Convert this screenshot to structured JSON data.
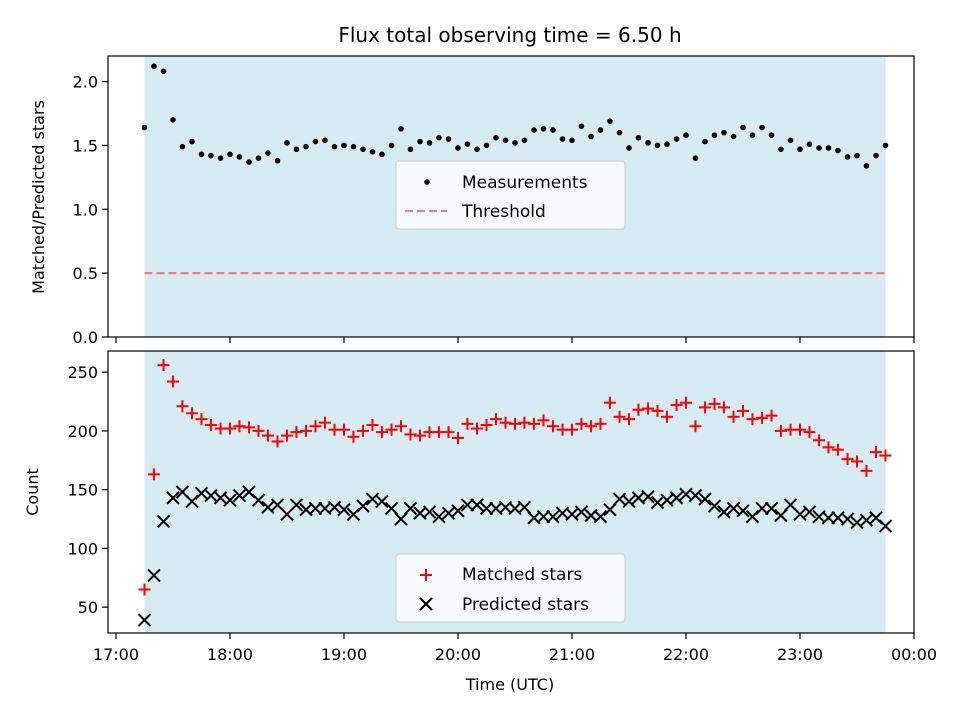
{
  "colors": {
    "shade": "#add8e6",
    "measure": "#000000",
    "threshold": "#f08080",
    "matched": "#ff0000",
    "predicted": "#000000"
  },
  "chart_data": [
    {
      "type": "scatter",
      "title": "Flux total observing time = 6.50 h",
      "ylabel": "Matched/Predicted stars",
      "xlabel": "",
      "xlim": [
        -0.07,
        7.0
      ],
      "ylim": [
        0.0,
        2.2
      ],
      "yticks": [
        0.0,
        0.5,
        1.0,
        1.5,
        2.0
      ],
      "ytick_labels": [
        "0.0",
        "0.5",
        "1.0",
        "1.5",
        "2.0"
      ],
      "xticks": [
        0,
        1,
        2,
        3,
        4,
        5,
        6,
        7
      ],
      "shaded_span": [
        0.25,
        6.75
      ],
      "legend": {
        "placement": "center",
        "entries": [
          "Measurements",
          "Threshold"
        ]
      },
      "threshold": 0.5,
      "series": [
        {
          "name": "Measurements",
          "x": [
            0.25,
            0.333,
            0.417,
            0.5,
            0.583,
            0.667,
            0.75,
            0.833,
            0.917,
            1.0,
            1.083,
            1.167,
            1.25,
            1.333,
            1.417,
            1.5,
            1.583,
            1.667,
            1.75,
            1.833,
            1.917,
            2.0,
            2.083,
            2.167,
            2.25,
            2.333,
            2.417,
            2.5,
            2.583,
            2.667,
            2.75,
            2.833,
            2.917,
            3.0,
            3.083,
            3.167,
            3.25,
            3.333,
            3.417,
            3.5,
            3.583,
            3.667,
            3.75,
            3.833,
            3.917,
            4.0,
            4.083,
            4.167,
            4.25,
            4.333,
            4.417,
            4.5,
            4.583,
            4.667,
            4.75,
            4.833,
            4.917,
            5.0,
            5.083,
            5.167,
            5.25,
            5.333,
            5.417,
            5.5,
            5.583,
            5.667,
            5.75,
            5.833,
            5.917,
            6.0,
            6.083,
            6.167,
            6.25,
            6.333,
            6.417,
            6.5,
            6.583,
            6.667,
            6.75
          ],
          "y": [
            1.64,
            2.12,
            2.08,
            1.7,
            1.49,
            1.53,
            1.43,
            1.42,
            1.4,
            1.43,
            1.41,
            1.37,
            1.4,
            1.44,
            1.38,
            1.52,
            1.47,
            1.49,
            1.53,
            1.54,
            1.49,
            1.5,
            1.49,
            1.47,
            1.45,
            1.43,
            1.5,
            1.63,
            1.47,
            1.53,
            1.52,
            1.56,
            1.55,
            1.48,
            1.51,
            1.47,
            1.5,
            1.56,
            1.54,
            1.52,
            1.54,
            1.62,
            1.63,
            1.62,
            1.55,
            1.54,
            1.65,
            1.57,
            1.62,
            1.69,
            1.6,
            1.48,
            1.56,
            1.52,
            1.5,
            1.51,
            1.55,
            1.58,
            1.4,
            1.53,
            1.58,
            1.6,
            1.57,
            1.64,
            1.58,
            1.64,
            1.58,
            1.47,
            1.54,
            1.47,
            1.51,
            1.48,
            1.48,
            1.46,
            1.41,
            1.42,
            1.34,
            1.42,
            1.5
          ]
        }
      ]
    },
    {
      "type": "scatter",
      "title": "",
      "ylabel": "Count",
      "xlabel": "Time (UTC)",
      "xlim": [
        -0.07,
        7.0
      ],
      "ylim": [
        28,
        268
      ],
      "yticks": [
        50,
        100,
        150,
        200,
        250
      ],
      "ytick_labels": [
        "50",
        "100",
        "150",
        "200",
        "250"
      ],
      "xticks": [
        0,
        1,
        2,
        3,
        4,
        5,
        6,
        7
      ],
      "xtick_labels": [
        "17:00",
        "18:00",
        "19:00",
        "20:00",
        "21:00",
        "22:00",
        "23:00",
        "00:00"
      ],
      "shaded_span": [
        0.25,
        6.75
      ],
      "legend": {
        "placement": "bottom-center",
        "entries": [
          "Matched stars",
          "Predicted stars"
        ]
      },
      "series": [
        {
          "name": "Matched stars",
          "marker": "plus",
          "x": [
            0.25,
            0.333,
            0.417,
            0.5,
            0.583,
            0.667,
            0.75,
            0.833,
            0.917,
            1.0,
            1.083,
            1.167,
            1.25,
            1.333,
            1.417,
            1.5,
            1.583,
            1.667,
            1.75,
            1.833,
            1.917,
            2.0,
            2.083,
            2.167,
            2.25,
            2.333,
            2.417,
            2.5,
            2.583,
            2.667,
            2.75,
            2.833,
            2.917,
            3.0,
            3.083,
            3.167,
            3.25,
            3.333,
            3.417,
            3.5,
            3.583,
            3.667,
            3.75,
            3.833,
            3.917,
            4.0,
            4.083,
            4.167,
            4.25,
            4.333,
            4.417,
            4.5,
            4.583,
            4.667,
            4.75,
            4.833,
            4.917,
            5.0,
            5.083,
            5.167,
            5.25,
            5.333,
            5.417,
            5.5,
            5.583,
            5.667,
            5.75,
            5.833,
            5.917,
            6.0,
            6.083,
            6.167,
            6.25,
            6.333,
            6.417,
            6.5,
            6.583,
            6.667,
            6.75
          ],
          "y": [
            65,
            163,
            256,
            242,
            221,
            215,
            210,
            205,
            202,
            202,
            204,
            203,
            200,
            196,
            191,
            196,
            199,
            200,
            204,
            207,
            201,
            201,
            195,
            200,
            205,
            199,
            201,
            204,
            197,
            196,
            199,
            199,
            199,
            194,
            206,
            202,
            205,
            210,
            207,
            206,
            207,
            206,
            209,
            204,
            201,
            201,
            206,
            204,
            206,
            224,
            212,
            210,
            218,
            219,
            217,
            212,
            222,
            224,
            204,
            220,
            223,
            220,
            212,
            217,
            210,
            211,
            213,
            200,
            201,
            201,
            199,
            192,
            186,
            184,
            176,
            174,
            166,
            182,
            179
          ]
        },
        {
          "name": "Predicted stars",
          "marker": "x",
          "x": [
            0.25,
            0.333,
            0.417,
            0.5,
            0.583,
            0.667,
            0.75,
            0.833,
            0.917,
            1.0,
            1.083,
            1.167,
            1.25,
            1.333,
            1.417,
            1.5,
            1.583,
            1.667,
            1.75,
            1.833,
            1.917,
            2.0,
            2.083,
            2.167,
            2.25,
            2.333,
            2.417,
            2.5,
            2.583,
            2.667,
            2.75,
            2.833,
            2.917,
            3.0,
            3.083,
            3.167,
            3.25,
            3.333,
            3.417,
            3.5,
            3.583,
            3.667,
            3.75,
            3.833,
            3.917,
            4.0,
            4.083,
            4.167,
            4.25,
            4.333,
            4.417,
            4.5,
            4.583,
            4.667,
            4.75,
            4.833,
            4.917,
            5.0,
            5.083,
            5.167,
            5.25,
            5.333,
            5.417,
            5.5,
            5.583,
            5.667,
            5.75,
            5.833,
            5.917,
            6.0,
            6.083,
            6.167,
            6.25,
            6.333,
            6.417,
            6.5,
            6.583,
            6.667,
            6.75
          ],
          "y": [
            39,
            77,
            123,
            143,
            148,
            140,
            147,
            145,
            143,
            141,
            145,
            148,
            141,
            135,
            137,
            129,
            137,
            133,
            134,
            134,
            135,
            133,
            129,
            136,
            142,
            140,
            134,
            125,
            134,
            130,
            131,
            127,
            130,
            132,
            137,
            137,
            134,
            134,
            135,
            134,
            135,
            126,
            127,
            127,
            130,
            129,
            131,
            128,
            127,
            133,
            142,
            140,
            143,
            144,
            139,
            141,
            143,
            146,
            145,
            142,
            136,
            131,
            134,
            132,
            127,
            134,
            134,
            128,
            137,
            129,
            131,
            127,
            126,
            126,
            125,
            122,
            124,
            126,
            119
          ]
        }
      ]
    }
  ]
}
